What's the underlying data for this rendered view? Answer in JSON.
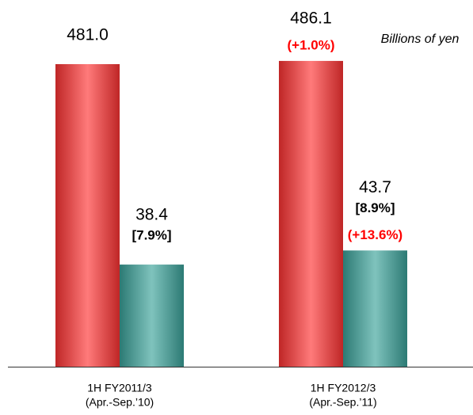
{
  "chart_data": {
    "type": "bar",
    "unit_label": "Billions of yen",
    "categories": [
      [
        "1H FY2011/3",
        "(Apr.-Sep.’10)"
      ],
      [
        "1H FY2012/3",
        "(Apr.-Sep.’11)"
      ]
    ],
    "series": [
      {
        "color": "#ff3333",
        "values": [
          481.0,
          486.1
        ],
        "value_labels": [
          "481.0",
          "486.1"
        ],
        "change_labels": [
          null,
          "(+1.0%)"
        ]
      },
      {
        "color": "#3aa39a",
        "axis": "y2",
        "values": [
          38.4,
          43.7
        ],
        "value_labels": [
          "38.4",
          "43.7"
        ],
        "ratio_labels": [
          "[7.9%]",
          "[8.9%]"
        ],
        "change_labels": [
          null,
          "(+13.6%)"
        ]
      }
    ],
    "ylim": [
      0,
      520
    ],
    "y2lim": [
      0,
      123
    ]
  }
}
